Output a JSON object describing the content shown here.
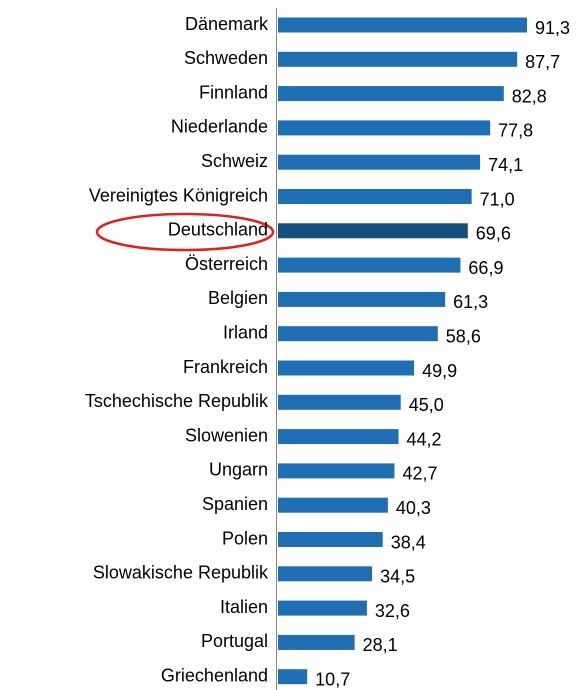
{
  "chart_data": {
    "type": "bar",
    "orientation": "horizontal",
    "categories": [
      "Dänemark",
      "Schweden",
      "Finnland",
      "Niederlande",
      "Schweiz",
      "Vereinigtes Königreich",
      "Deutschland",
      "Österreich",
      "Belgien",
      "Irland",
      "Frankreich",
      "Tschechische Republik",
      "Slowenien",
      "Ungarn",
      "Spanien",
      "Polen",
      "Slowakische Republik",
      "Italien",
      "Portugal",
      "Griechenland"
    ],
    "values": [
      91.3,
      87.7,
      82.8,
      77.8,
      74.1,
      71.0,
      69.6,
      66.9,
      61.3,
      58.6,
      49.9,
      45.0,
      44.2,
      42.7,
      40.3,
      38.4,
      34.5,
      32.6,
      28.1,
      10.7
    ],
    "value_labels": [
      "91,3",
      "87,7",
      "82,8",
      "77,8",
      "74,1",
      "71,0",
      "69,6",
      "66,9",
      "61,3",
      "58,6",
      "49,9",
      "45,0",
      "44,2",
      "42,7",
      "40,3",
      "38,4",
      "34,5",
      "32,6",
      "28,1",
      "10,7"
    ],
    "colors": [
      "#1f6db3",
      "#1f6db3",
      "#1f6db3",
      "#1f6db3",
      "#1f6db3",
      "#1f6db3",
      "#174e80",
      "#1f6db3",
      "#1f6db3",
      "#1f6db3",
      "#1f6db3",
      "#1f6db3",
      "#1f6db3",
      "#1f6db3",
      "#1f6db3",
      "#1f6db3",
      "#1f6db3",
      "#1f6db3",
      "#1f6db3",
      "#1f6db3"
    ]
  }
}
